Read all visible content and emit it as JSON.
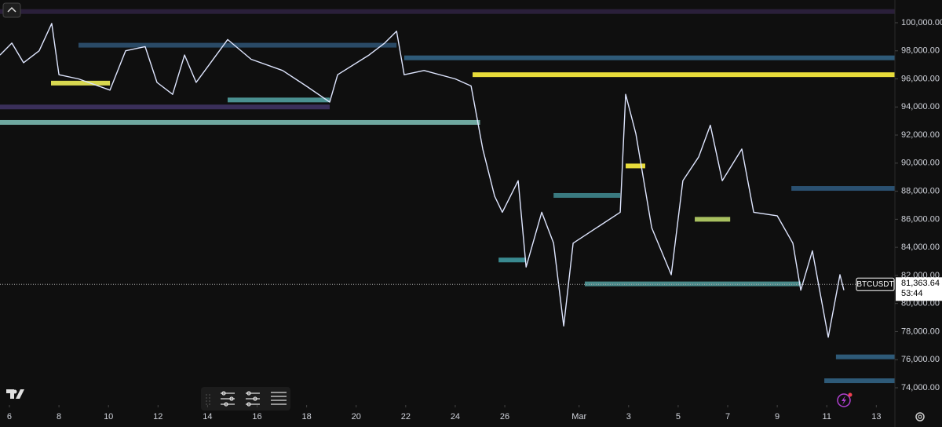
{
  "chart_data": {
    "type": "line",
    "symbol": "BTCUSDT",
    "last_price": 81363.64,
    "last_price_label": "81,363.64",
    "countdown": "53:44",
    "xlim": [
      -0.38,
      35.75
    ],
    "ylim": [
      72770,
      101620
    ],
    "grid": false,
    "xticks": [
      {
        "value": 0,
        "label": "6"
      },
      {
        "value": 2,
        "label": "8"
      },
      {
        "value": 4,
        "label": "10"
      },
      {
        "value": 6,
        "label": "12"
      },
      {
        "value": 8,
        "label": "14"
      },
      {
        "value": 10,
        "label": "16"
      },
      {
        "value": 12,
        "label": "18"
      },
      {
        "value": 14,
        "label": "20"
      },
      {
        "value": 16,
        "label": "22"
      },
      {
        "value": 18,
        "label": "24"
      },
      {
        "value": 20,
        "label": "26"
      },
      {
        "value": 23,
        "label": "Mar"
      },
      {
        "value": 25,
        "label": "3"
      },
      {
        "value": 27,
        "label": "5"
      },
      {
        "value": 29,
        "label": "7"
      },
      {
        "value": 31,
        "label": "9"
      },
      {
        "value": 33,
        "label": "11"
      },
      {
        "value": 35,
        "label": "13"
      }
    ],
    "yticks": [
      {
        "value": 74000,
        "label": "74,000.00"
      },
      {
        "value": 76000,
        "label": "76,000.00"
      },
      {
        "value": 78000,
        "label": "78,000.00"
      },
      {
        "value": 80000,
        "label": "80,000.00"
      },
      {
        "value": 82000,
        "label": "82,000.00"
      },
      {
        "value": 84000,
        "label": "84,000.00"
      },
      {
        "value": 86000,
        "label": "86,000.00"
      },
      {
        "value": 88000,
        "label": "88,000.00"
      },
      {
        "value": 90000,
        "label": "90,000.00"
      },
      {
        "value": 92000,
        "label": "92,000.00"
      },
      {
        "value": 94000,
        "label": "94,000.00"
      },
      {
        "value": 96000,
        "label": "96,000.00"
      },
      {
        "value": 98000,
        "label": "98,000.00"
      },
      {
        "value": 100000,
        "label": "100,000.00"
      }
    ],
    "series": [
      {
        "color": "#dfe6ff",
        "x": [
          -0.38,
          0.1,
          0.57,
          1.2,
          1.71,
          2.0,
          2.79,
          4.06,
          4.69,
          5.48,
          5.96,
          6.59,
          7.07,
          7.54,
          8.81,
          9.76,
          11.03,
          11.98,
          12.93,
          13.25,
          14.52,
          15.15,
          15.63,
          15.94,
          16.74,
          18.0,
          18.64,
          19.11,
          19.59,
          19.9,
          20.54,
          20.86,
          21.49,
          21.97,
          22.38,
          22.76,
          23.71,
          24.66,
          24.88,
          25.29,
          25.93,
          26.72,
          27.19,
          27.83,
          28.3,
          28.78,
          29.57,
          30.05,
          31.0,
          31.63,
          31.95,
          32.42,
          33.06,
          33.53,
          33.69
        ],
        "values": [
          97700,
          98550,
          97150,
          98000,
          99950,
          96300,
          96000,
          95200,
          98000,
          98300,
          95750,
          94900,
          97700,
          95750,
          98800,
          97400,
          96600,
          95500,
          94350,
          96300,
          97700,
          98550,
          99400,
          96300,
          96600,
          96000,
          95500,
          91000,
          87650,
          86500,
          88750,
          82600,
          86500,
          84300,
          78400,
          84300,
          85400,
          86500,
          94900,
          92100,
          85400,
          82050,
          88750,
          90450,
          92700,
          88750,
          91000,
          86500,
          86250,
          84300,
          80950,
          83750,
          77600,
          82050,
          80950
        ]
      }
    ],
    "heatmap": [
      {
        "price": 100800,
        "start": -0.38,
        "end": 35.75,
        "color": "#2a1f3a"
      },
      {
        "price": 98400,
        "start": 2.79,
        "end": 15.63,
        "color": "#2a4a66"
      },
      {
        "price": 97500,
        "start": 15.94,
        "end": 35.75,
        "color": "#2e5a78"
      },
      {
        "price": 96300,
        "start": 18.7,
        "end": 35.75,
        "color": "#e8dc3a"
      },
      {
        "price": 95700,
        "start": 1.68,
        "end": 4.06,
        "color": "#d8d850"
      },
      {
        "price": 94500,
        "start": 8.81,
        "end": 12.93,
        "color": "#4a9090"
      },
      {
        "price": 94000,
        "start": -0.38,
        "end": 12.93,
        "color": "#3a2f5a"
      },
      {
        "price": 92900,
        "start": -0.38,
        "end": 19.0,
        "color": "#6fa8a0"
      },
      {
        "price": 89800,
        "start": 24.88,
        "end": 25.67,
        "color": "#e8dc3a"
      },
      {
        "price": 88200,
        "start": 31.57,
        "end": 35.75,
        "color": "#2a5070"
      },
      {
        "price": 87700,
        "start": 21.97,
        "end": 24.66,
        "color": "#3a7a80"
      },
      {
        "price": 86000,
        "start": 27.67,
        "end": 29.1,
        "color": "#a8c060"
      },
      {
        "price": 83100,
        "start": 19.75,
        "end": 20.86,
        "color": "#3a8a90"
      },
      {
        "price": 81400,
        "start": 23.23,
        "end": 31.95,
        "color": "#4a8a8a"
      },
      {
        "price": 76200,
        "start": 33.37,
        "end": 35.75,
        "color": "#2e5a78"
      },
      {
        "price": 74500,
        "start": 32.9,
        "end": 35.75,
        "color": "#2e5a78"
      }
    ]
  }
}
